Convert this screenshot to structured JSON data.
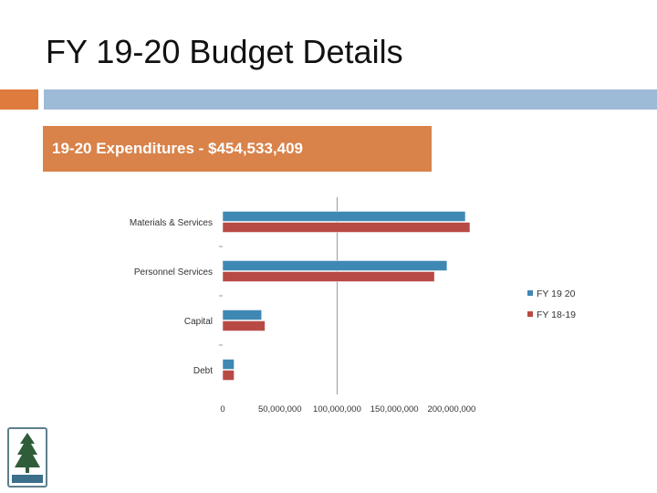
{
  "slide": {
    "title": "FY 19-20 Budget Details",
    "subtitle": "19-20 Expenditures - $454,533,409"
  },
  "colors": {
    "title_bar_orange": "#e07b3e",
    "title_bar_blue": "#9dbad6",
    "subtitle_background": "#d98249",
    "series_fy1920": "#3f88b3",
    "series_fy1819": "#b84a45"
  },
  "chart_data": {
    "type": "bar",
    "orientation": "horizontal",
    "categories": [
      "Materials & Services",
      "Personnel Services",
      "Capital",
      "Debt"
    ],
    "series": [
      {
        "name": "FY 19 20",
        "values": [
          212000000,
          196000000,
          34000000,
          10000000
        ]
      },
      {
        "name": "FY 18-19",
        "values": [
          216000000,
          185000000,
          37000000,
          10000000
        ]
      }
    ],
    "xlim": [
      0,
      220000000
    ],
    "xticks": [
      {
        "value": 0,
        "label": "0"
      },
      {
        "value": 50000000,
        "label": "50,000,000"
      },
      {
        "value": 100000000,
        "label": "100,000,000"
      },
      {
        "value": 150000000,
        "label": "150,000,000"
      },
      {
        "value": 200000000,
        "label": "200,000,000"
      }
    ],
    "legend": {
      "position": "right"
    },
    "grid": false
  }
}
